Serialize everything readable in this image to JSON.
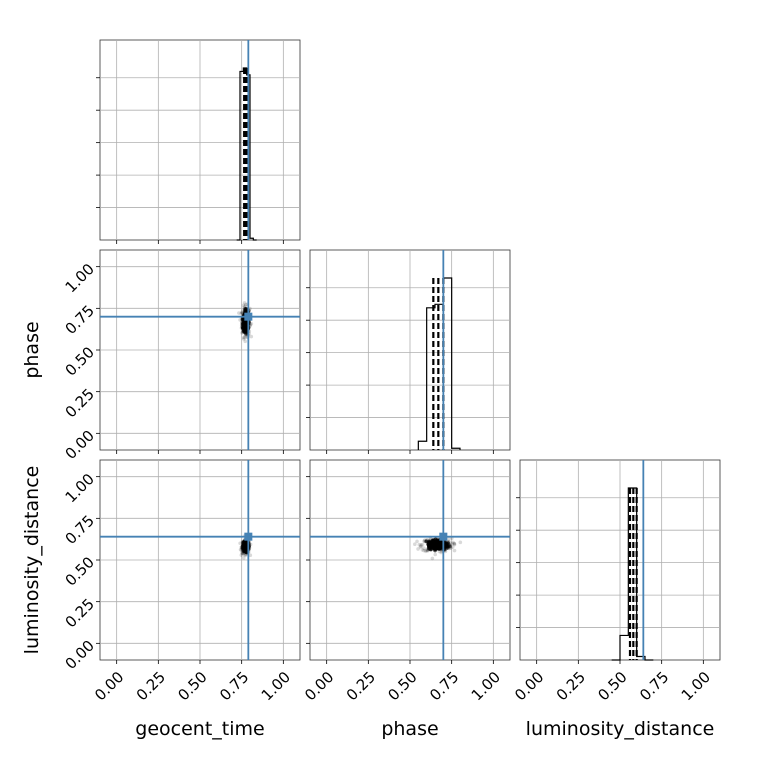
{
  "chart_data": {
    "type": "corner",
    "parameters": [
      "geocent_time",
      "phase",
      "luminosity_distance"
    ],
    "axis_range": [
      -0.1,
      1.1
    ],
    "tick_values": [
      0.0,
      0.25,
      0.5,
      0.75,
      1.0
    ],
    "tick_labels": [
      "0.00",
      "0.25",
      "0.50",
      "0.75",
      "1.00"
    ],
    "grid": true,
    "truths": {
      "geocent_time": 0.79,
      "phase": 0.7,
      "luminosity_distance": 0.64
    },
    "quantiles": {
      "geocent_time": [
        0.765,
        0.775,
        0.785
      ],
      "phase": [
        0.64,
        0.67,
        0.7
      ],
      "luminosity_distance": [
        0.56,
        0.58,
        0.6
      ]
    },
    "histograms": {
      "geocent_time": {
        "bins": [
          0.72,
          0.74,
          0.76,
          0.78,
          0.8,
          0.82,
          0.84
        ],
        "counts": [
          0.0,
          0.98,
          1.0,
          0.96,
          0.01,
          0.0
        ]
      },
      "phase": {
        "bins": [
          0.55,
          0.6,
          0.65,
          0.7,
          0.75,
          0.8
        ],
        "counts": [
          0.05,
          0.81,
          0.83,
          0.98,
          0.01
        ]
      },
      "luminosity_distance": {
        "bins": [
          0.45,
          0.5,
          0.55,
          0.6,
          0.65,
          0.7
        ],
        "counts": [
          0.0,
          0.14,
          0.98,
          0.02,
          0.0
        ]
      }
    },
    "density_2d": [
      {
        "x": "geocent_time",
        "y": "phase",
        "center": [
          0.775,
          0.67
        ],
        "spread": [
          0.012,
          0.045
        ]
      },
      {
        "x": "geocent_time",
        "y": "luminosity_distance",
        "center": [
          0.775,
          0.58
        ],
        "spread": [
          0.012,
          0.02
        ]
      },
      {
        "x": "phase",
        "y": "luminosity_distance",
        "center": [
          0.66,
          0.59
        ],
        "spread": [
          0.045,
          0.02
        ]
      }
    ]
  }
}
